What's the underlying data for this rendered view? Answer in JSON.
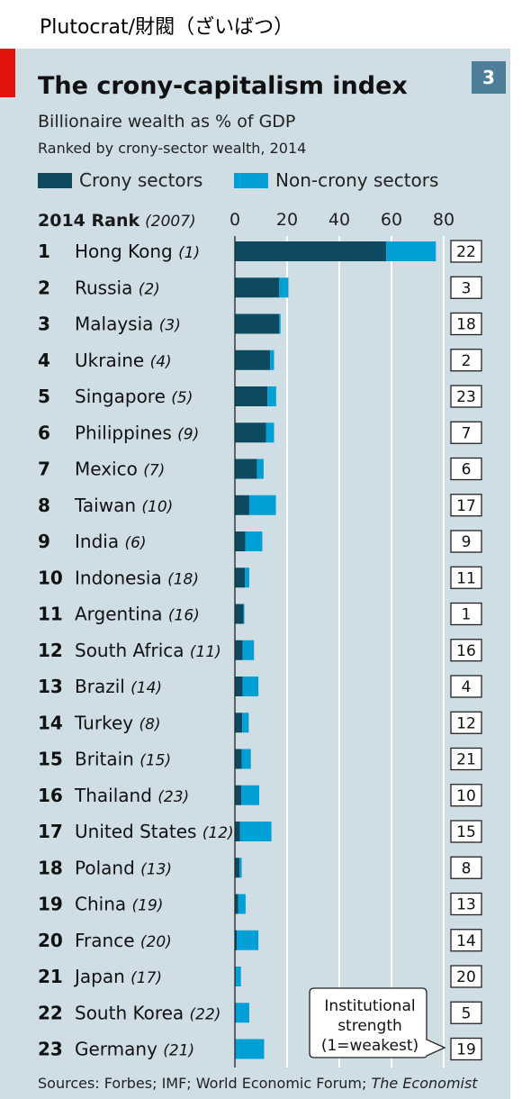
{
  "caption": "Plutocrat/財閥（ざいばつ）",
  "badge_number": "3",
  "title": "The crony-capitalism index",
  "subtitle": "Billionaire wealth as % of GDP",
  "subtitle2": "Ranked by crony-sector wealth, 2014",
  "legend": {
    "crony": "Crony sectors",
    "noncrony": "Non-crony sectors"
  },
  "rank_header": {
    "bold": "2014 Rank",
    "italic": "(2007)"
  },
  "callout": {
    "line1": "Institutional",
    "line2": "strength",
    "line3": "(1=weakest)"
  },
  "footer": {
    "text": "Sources: Forbes; IMF; World Economic Forum; ",
    "italic": "The Economist"
  },
  "colors": {
    "crony": "#0d4a60",
    "noncrony": "#00a0d6",
    "panel": "#cfdde4",
    "red": "#e3120b",
    "badge": "#4e7f9a"
  },
  "chart_data": {
    "type": "bar",
    "orientation": "horizontal",
    "stacked": true,
    "xlim": [
      0,
      80
    ],
    "xticks": [
      0,
      20,
      40,
      60,
      80
    ],
    "grid": true,
    "legend_position": "top",
    "rows": [
      {
        "rank": "1",
        "country": "Hong Kong",
        "rank2007": "(1)",
        "crony": 58.0,
        "noncrony": 19.0,
        "institutional": "22"
      },
      {
        "rank": "2",
        "country": "Russia",
        "rank2007": "(2)",
        "crony": 17.0,
        "noncrony": 3.5,
        "institutional": "3"
      },
      {
        "rank": "3",
        "country": "Malaysia",
        "rank2007": "(3)",
        "crony": 17.0,
        "noncrony": 0.5,
        "institutional": "18"
      },
      {
        "rank": "4",
        "country": "Ukraine",
        "rank2007": "(4)",
        "crony": 13.5,
        "noncrony": 1.5,
        "institutional": "2"
      },
      {
        "rank": "5",
        "country": "Singapore",
        "rank2007": "(5)",
        "crony": 12.5,
        "noncrony": 3.3,
        "institutional": "23"
      },
      {
        "rank": "6",
        "country": "Philippines",
        "rank2007": "(9)",
        "crony": 12.0,
        "noncrony": 3.0,
        "institutional": "7"
      },
      {
        "rank": "7",
        "country": "Mexico",
        "rank2007": "(7)",
        "crony": 8.5,
        "noncrony": 2.5,
        "institutional": "6"
      },
      {
        "rank": "8",
        "country": "Taiwan",
        "rank2007": "(10)",
        "crony": 5.5,
        "noncrony": 10.2,
        "institutional": "17"
      },
      {
        "rank": "9",
        "country": "India",
        "rank2007": "(6)",
        "crony": 4.0,
        "noncrony": 6.5,
        "institutional": "9"
      },
      {
        "rank": "10",
        "country": "Indonesia",
        "rank2007": "(18)",
        "crony": 3.8,
        "noncrony": 1.7,
        "institutional": "11"
      },
      {
        "rank": "11",
        "country": "Argentina",
        "rank2007": "(16)",
        "crony": 3.3,
        "noncrony": 0.3,
        "institutional": "1"
      },
      {
        "rank": "12",
        "country": "South Africa",
        "rank2007": "(11)",
        "crony": 3.0,
        "noncrony": 4.3,
        "institutional": "16"
      },
      {
        "rank": "13",
        "country": "Brazil",
        "rank2007": "(14)",
        "crony": 3.0,
        "noncrony": 6.0,
        "institutional": "4"
      },
      {
        "rank": "14",
        "country": "Turkey",
        "rank2007": "(8)",
        "crony": 2.8,
        "noncrony": 2.5,
        "institutional": "12"
      },
      {
        "rank": "15",
        "country": "Britain",
        "rank2007": "(15)",
        "crony": 2.6,
        "noncrony": 3.5,
        "institutional": "21"
      },
      {
        "rank": "16",
        "country": "Thailand",
        "rank2007": "(23)",
        "crony": 2.5,
        "noncrony": 6.8,
        "institutional": "10"
      },
      {
        "rank": "17",
        "country": "United States",
        "rank2007": "(12)",
        "crony": 2.0,
        "noncrony": 12.0,
        "institutional": "15"
      },
      {
        "rank": "18",
        "country": "Poland",
        "rank2007": "(13)",
        "crony": 1.8,
        "noncrony": 0.8,
        "institutional": "8"
      },
      {
        "rank": "19",
        "country": "China",
        "rank2007": "(19)",
        "crony": 1.3,
        "noncrony": 2.8,
        "institutional": "13"
      },
      {
        "rank": "20",
        "country": "France",
        "rank2007": "(20)",
        "crony": 0.7,
        "noncrony": 8.3,
        "institutional": "14"
      },
      {
        "rank": "21",
        "country": "Japan",
        "rank2007": "(17)",
        "crony": 0.3,
        "noncrony": 2.0,
        "institutional": "20"
      },
      {
        "rank": "22",
        "country": "South Korea",
        "rank2007": "(22)",
        "crony": 0.3,
        "noncrony": 5.2,
        "institutional": "5"
      },
      {
        "rank": "23",
        "country": "Germany",
        "rank2007": "(21)",
        "crony": 0.2,
        "noncrony": 11.0,
        "institutional": "19"
      }
    ]
  }
}
